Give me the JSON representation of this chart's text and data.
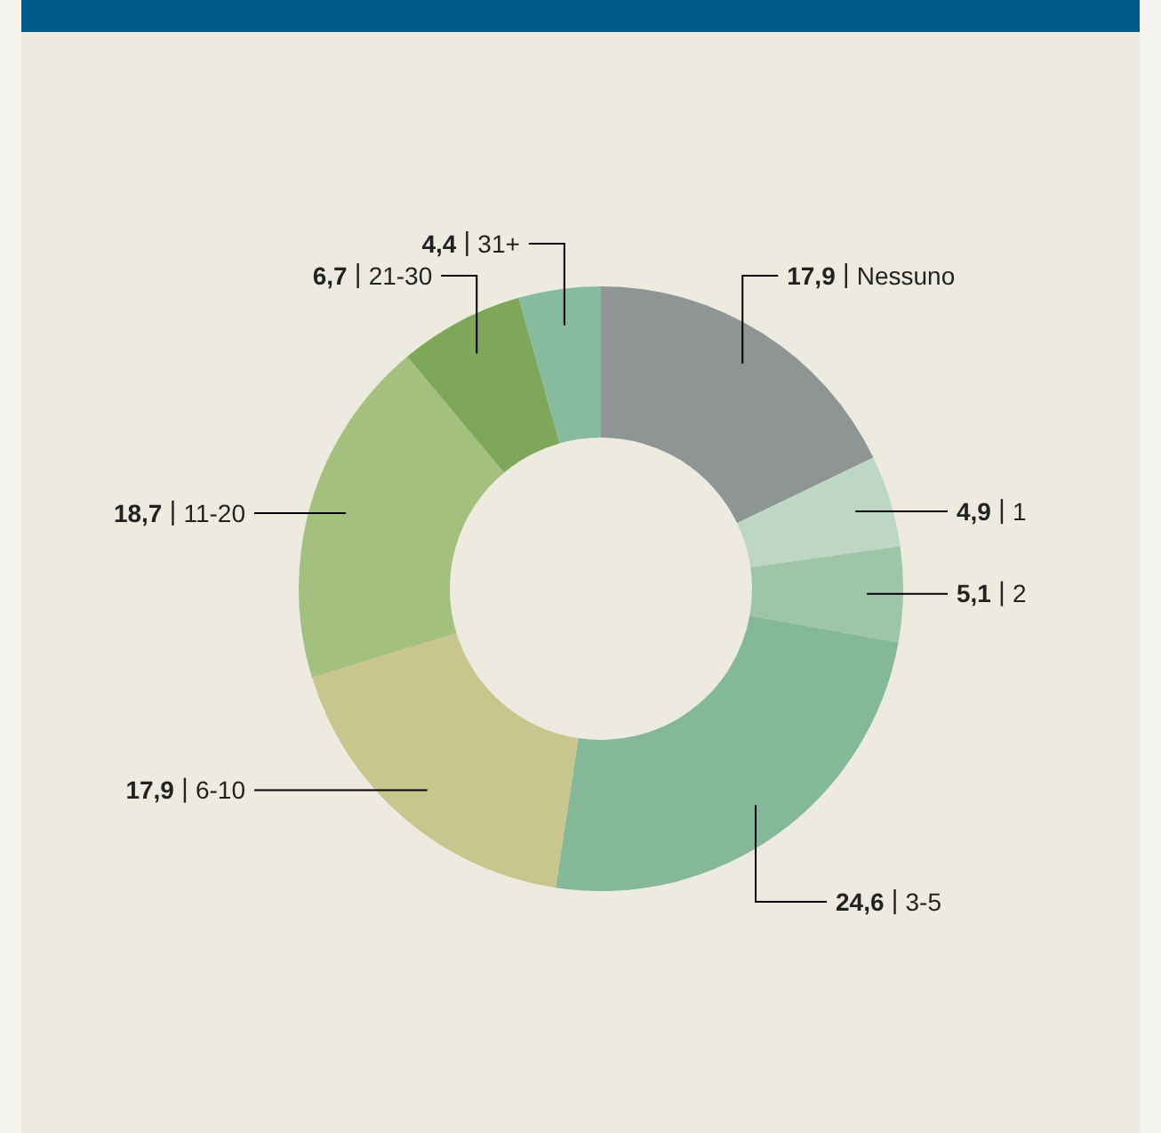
{
  "chart_data": {
    "type": "donut",
    "categories": [
      "Nessuno",
      "1",
      "2",
      "3-5",
      "6-10",
      "11-20",
      "21-30",
      "31+"
    ],
    "values": [
      17.9,
      4.9,
      5.1,
      24.6,
      17.9,
      18.7,
      6.7,
      4.4
    ],
    "value_labels": [
      "17,9",
      "4,9",
      "5,1",
      "24,6",
      "17,9",
      "18,7",
      "6,7",
      "4,4"
    ],
    "colors": [
      "#8f9594",
      "#bdd7c4",
      "#9dc5a8",
      "#84b898",
      "#c8c58f",
      "#a3c07f",
      "#7ea75a",
      "#86bba0"
    ]
  }
}
